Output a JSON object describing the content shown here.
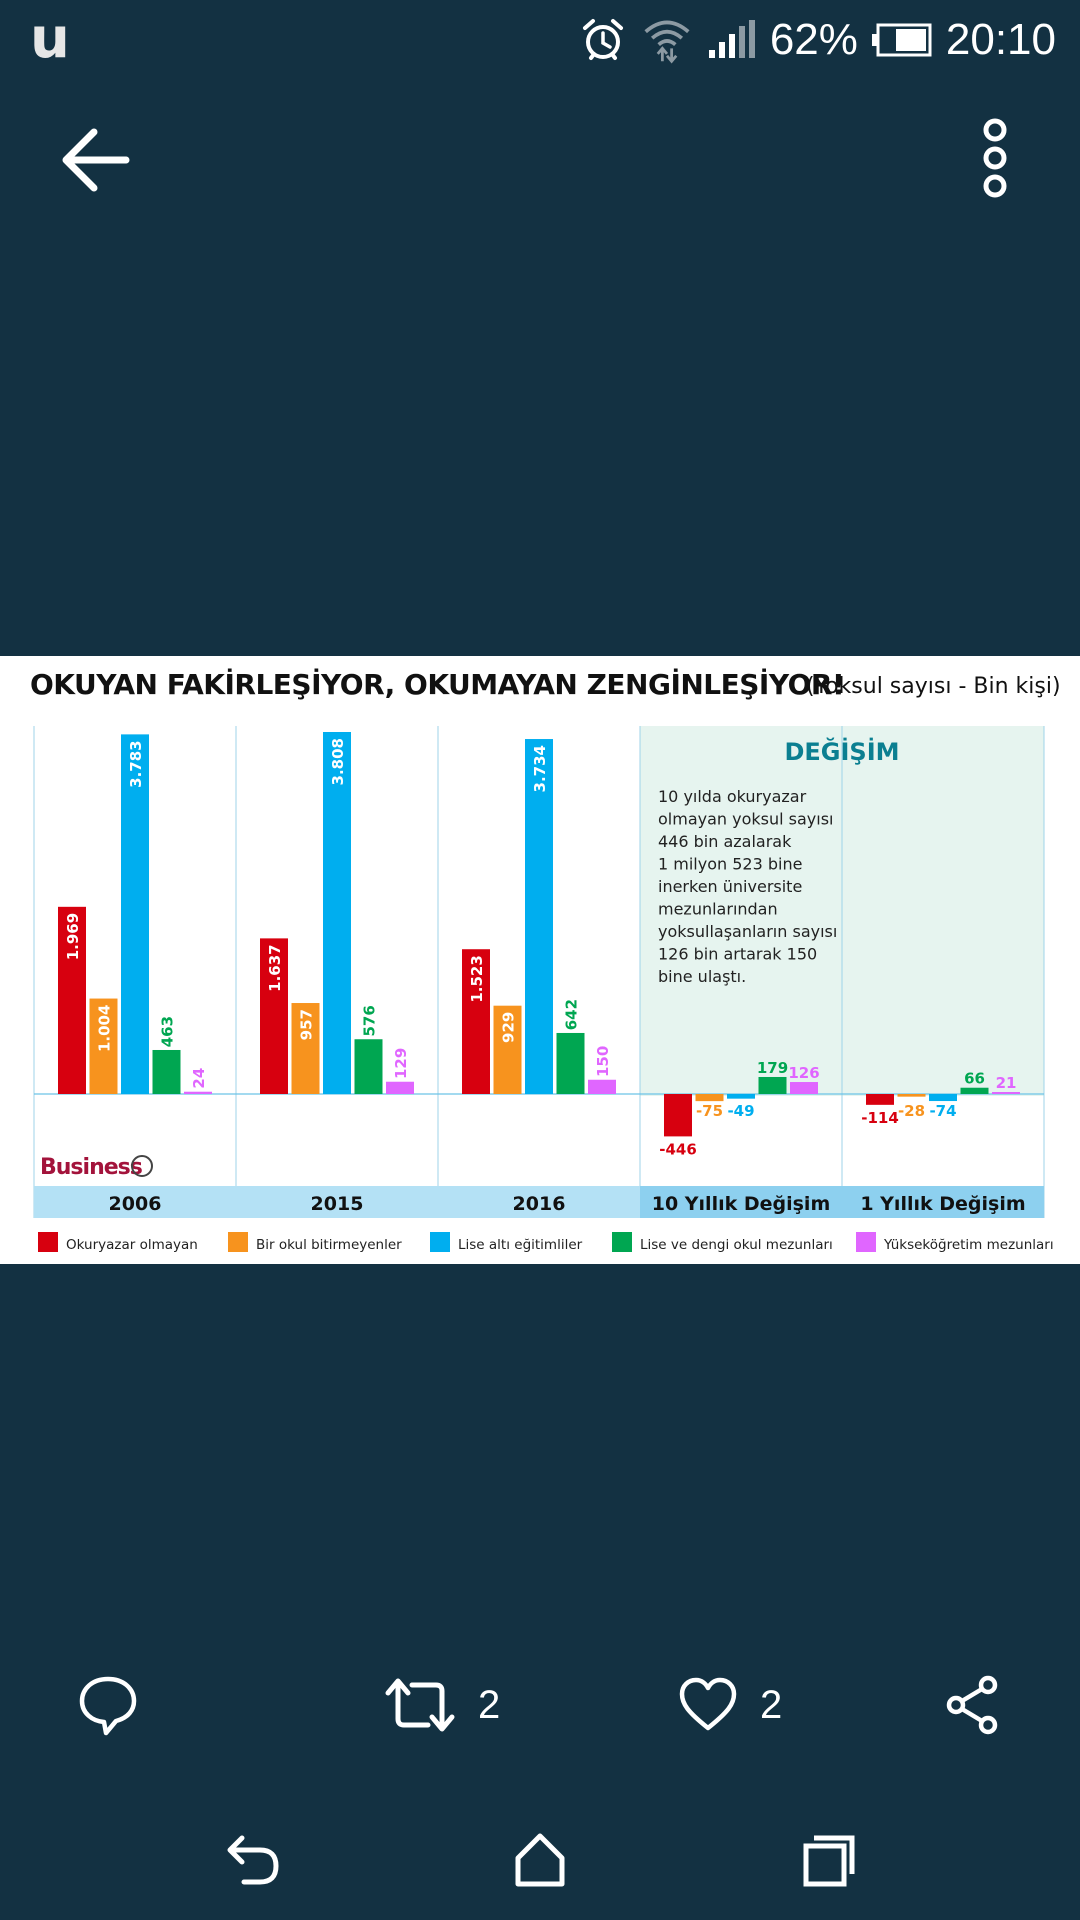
{
  "status_bar": {
    "app_logo": "u",
    "battery_percent": "62%",
    "time": "20:10",
    "icons": [
      "alarm-icon",
      "wifi-icon",
      "signal-icon",
      "battery-icon"
    ]
  },
  "toolbar": {
    "back_icon": "arrow-left-icon",
    "menu_icon": "more-vertical-icon"
  },
  "post_image": {
    "title": "OKUYAN FAKİRLEŞİYOR, OKUMAYAN ZENGİNLEŞİYOR!",
    "subtitle": "(Yoksul sayısı - Bin kişi)",
    "change_header": "DEĞİŞİM",
    "note_lines": [
      "10 yılda okuryazar",
      "olmayan yoksul sayısı",
      "446 bin azalarak",
      "1 milyon 523 bine",
      "inerken üniversite",
      "mezunlarından",
      "yoksullaşanların sayısı",
      "126 bin artarak 150",
      "bine ulaştı."
    ],
    "logo_text": "Business",
    "chart_data": {
      "type": "bar",
      "categories": [
        "2006",
        "2015",
        "2016",
        "10 Yıllık Değişim",
        "1 Yıllık Değişim"
      ],
      "series": [
        {
          "name": "Okuryazar olmayan",
          "color": "#d7000f",
          "values": [
            1969,
            1637,
            1523,
            -446,
            -114
          ],
          "labels": [
            "1.969",
            "1.637",
            "1.523",
            "-446",
            "-114"
          ]
        },
        {
          "name": "Bir okul bitirmeyenler",
          "color": "#f7931e",
          "values": [
            1004,
            957,
            929,
            -75,
            -28
          ],
          "labels": [
            "1.004",
            "957",
            "929",
            "-75",
            "-28"
          ]
        },
        {
          "name": "Lise altı eğitimliler",
          "color": "#00aeef",
          "values": [
            3783,
            3808,
            3734,
            -49,
            -74
          ],
          "labels": [
            "3.783",
            "3.808",
            "3.734",
            "-49",
            "-74"
          ]
        },
        {
          "name": "Lise ve dengi okul mezunları",
          "color": "#00a651",
          "values": [
            463,
            576,
            642,
            179,
            66
          ],
          "labels": [
            "463",
            "576",
            "642",
            "179",
            "66"
          ]
        },
        {
          "name": "Yükseköğretim mezunları",
          "color": "#e066ff",
          "values": [
            24,
            129,
            150,
            126,
            21
          ],
          "labels": [
            "24",
            "129",
            "150",
            "126",
            "21"
          ]
        }
      ],
      "legend_position": "bottom",
      "grid": false
    }
  },
  "actions": {
    "reply_icon": "reply-bubble-icon",
    "retweet_icon": "retweet-icon",
    "retweet_count": "2",
    "like_icon": "heart-icon",
    "like_count": "2",
    "share_icon": "share-icon"
  },
  "nav_bar": {
    "back_icon": "nav-back-icon",
    "home_icon": "nav-home-icon",
    "recents_icon": "nav-recents-icon"
  }
}
